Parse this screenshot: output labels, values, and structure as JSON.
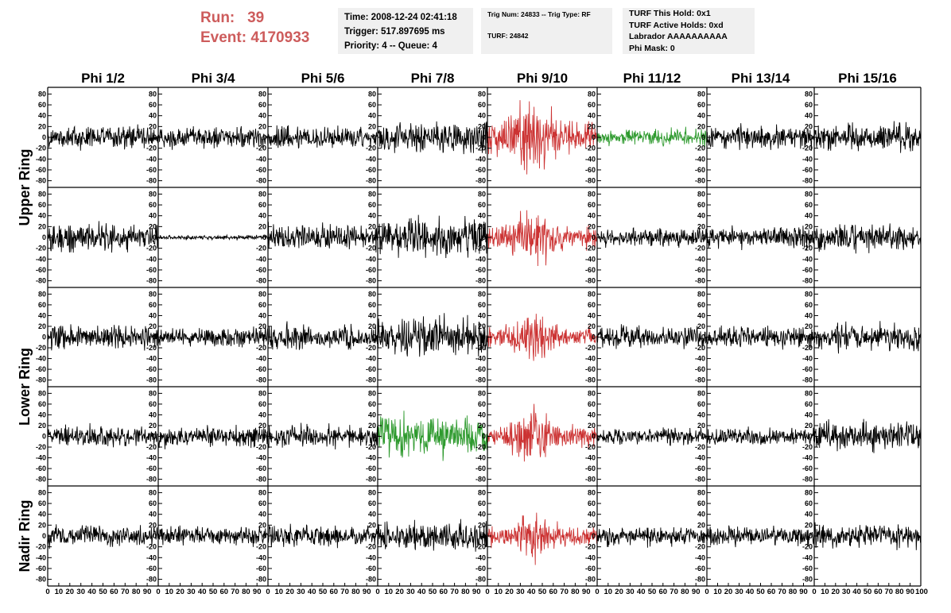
{
  "header": {
    "run_label": "Run:",
    "run_value": "39",
    "event_label": "Event:",
    "event_value": "4170933",
    "time": "Time: 2008-12-24 02:41:18",
    "trigger": "Trigger: 517.897695 ms",
    "priority": "Priority: 4 -- Queue: 4",
    "trig_num": "Trig Num: 24833 -- Trig Type: RF",
    "turf": "TURF: 24842",
    "turf_hold": "TURF This Hold: 0x1",
    "turf_active": "TURF Active Holds: 0xd",
    "labrador": "Labrador AAAAAAAAAA",
    "phi_mask": "Phi Mask: 0"
  },
  "colors": {
    "header_red": "#cd5c5c",
    "trace_default": "#000000",
    "trace_red": "#cc3333",
    "trace_green": "#2e9a2e",
    "info_background": "#f0f0f0"
  },
  "chart_data": {
    "type": "line",
    "columns": [
      "Phi 1/2",
      "Phi 3/4",
      "Phi 5/6",
      "Phi 7/8",
      "Phi 9/10",
      "Phi 11/12",
      "Phi 13/14",
      "Phi 15/16"
    ],
    "ring_labels": [
      {
        "text": "Upper Ring",
        "rows": [
          0,
          1
        ]
      },
      {
        "text": "Lower Ring",
        "rows": [
          2,
          3
        ]
      },
      {
        "text": "Nadir Ring",
        "rows": [
          4
        ]
      }
    ],
    "xlim": [
      0,
      100
    ],
    "ylim": [
      -85,
      85
    ],
    "x_ticks": [
      0,
      10,
      20,
      30,
      40,
      50,
      60,
      70,
      80,
      90
    ],
    "x_last_tick": "100",
    "y_ticks": [
      80,
      60,
      40,
      20,
      0,
      -20,
      -40,
      -60,
      -80
    ],
    "samples_per_trace": 260,
    "amplitude_grid": [
      [
        10,
        9,
        10,
        14,
        25,
        7,
        10,
        11
      ],
      [
        12,
        2,
        11,
        16,
        17,
        8,
        9,
        11
      ],
      [
        11,
        8,
        10,
        16,
        15,
        9,
        10,
        11
      ],
      [
        9,
        9,
        10,
        18,
        17,
        7,
        8,
        12
      ],
      [
        9,
        8,
        9,
        12,
        15,
        8,
        8,
        10
      ]
    ],
    "color_grid": [
      [
        "black",
        "black",
        "black",
        "black",
        "red",
        "green",
        "black",
        "black"
      ],
      [
        "black",
        "black",
        "black",
        "black",
        "red",
        "black",
        "black",
        "black"
      ],
      [
        "black",
        "black",
        "black",
        "black",
        "red",
        "black",
        "black",
        "black"
      ],
      [
        "black",
        "black",
        "black",
        "green",
        "red",
        "black",
        "black",
        "black"
      ],
      [
        "black",
        "black",
        "black",
        "black",
        "red",
        "black",
        "black",
        "black"
      ]
    ]
  }
}
